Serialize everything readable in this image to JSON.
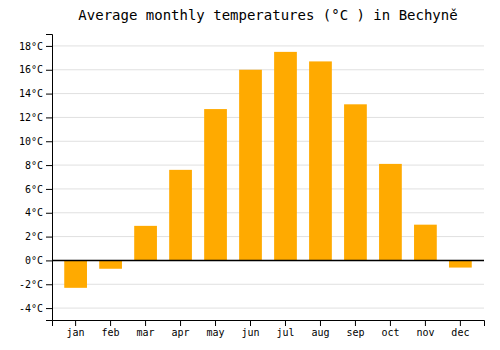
{
  "chart_data": {
    "type": "bar",
    "title": "Average monthly temperatures (°C ) in Bechyně",
    "categories": [
      "jan",
      "feb",
      "mar",
      "apr",
      "may",
      "jun",
      "jul",
      "aug",
      "sep",
      "oct",
      "nov",
      "dec"
    ],
    "values": [
      -2.3,
      -0.7,
      2.9,
      7.6,
      12.7,
      16.0,
      17.5,
      16.7,
      13.1,
      8.1,
      3.0,
      -0.6
    ],
    "color": "#FFAA00",
    "ylim": [
      -5,
      19
    ],
    "yticks": [
      {
        "value": -4,
        "label": "-4°C"
      },
      {
        "value": -2,
        "label": "-2°C"
      },
      {
        "value": 0,
        "label": "0°C"
      },
      {
        "value": 2,
        "label": "2°C"
      },
      {
        "value": 4,
        "label": "4°C"
      },
      {
        "value": 6,
        "label": "6°C"
      },
      {
        "value": 8,
        "label": "8°C"
      },
      {
        "value": 10,
        "label": "10°C"
      },
      {
        "value": 12,
        "label": "12°C"
      },
      {
        "value": 14,
        "label": "14°C"
      },
      {
        "value": 16,
        "label": "16°C"
      },
      {
        "value": 18,
        "label": "18°C"
      }
    ],
    "grid": true
  }
}
